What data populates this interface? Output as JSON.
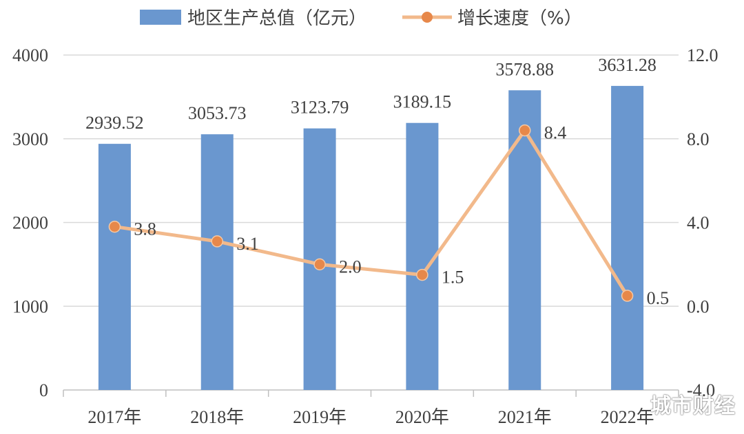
{
  "chart_data": {
    "type": "bar",
    "categories": [
      "2017年",
      "2018年",
      "2019年",
      "2020年",
      "2021年",
      "2022年"
    ],
    "series": [
      {
        "name": "地区生产总值（亿元）",
        "type": "bar",
        "axis": "left",
        "color": "#6a97cf",
        "values": [
          2939.52,
          3053.73,
          3123.79,
          3189.15,
          3578.88,
          3631.28
        ],
        "labels": [
          "2939.52",
          "3053.73",
          "3123.79",
          "3189.15",
          "3578.88",
          "3631.28"
        ]
      },
      {
        "name": "增长速度（%）",
        "type": "line",
        "axis": "right",
        "color": "#f2b98b",
        "marker_color": "#e7884a",
        "values": [
          3.8,
          3.1,
          2.0,
          1.5,
          8.4,
          0.5
        ],
        "labels": [
          "3.8",
          "3.1",
          "2.0",
          "1.5",
          "8.4",
          "0.5"
        ]
      }
    ],
    "y_left": {
      "ylim": [
        0,
        4000
      ],
      "ticks": [
        "0",
        "1000",
        "2000",
        "3000",
        "4000"
      ]
    },
    "y_right": {
      "ylim": [
        -4.0,
        12.0
      ],
      "ticks": [
        "-4.0",
        "0.0",
        "4.0",
        "8.0",
        "12.0"
      ]
    },
    "grid": true,
    "legend_position": "top"
  },
  "watermark": "城市财经"
}
